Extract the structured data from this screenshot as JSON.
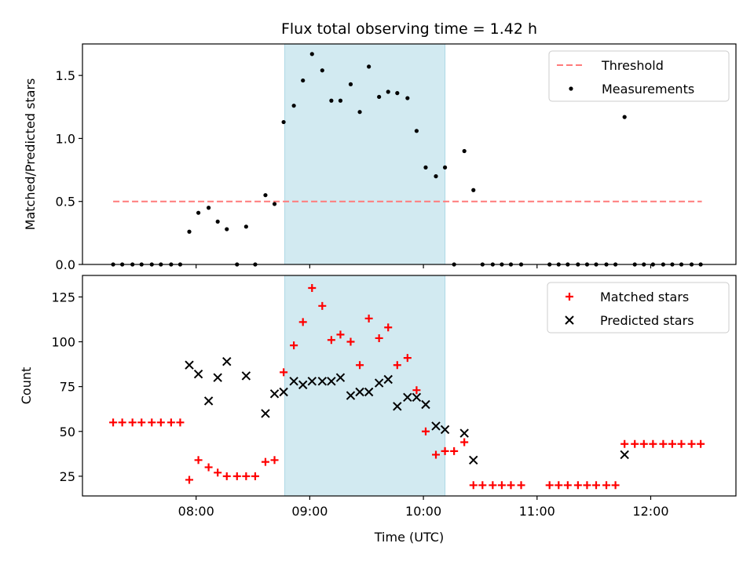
{
  "title": "Flux total observing time = 1.42 h",
  "colors": {
    "threshold": "#ff7a7a",
    "shade": "#add8e6",
    "matched": "#ff0000",
    "predicted": "#000000",
    "measurement": "#000000"
  },
  "chart_data": [
    {
      "type": "scatter",
      "ylabel": "Matched/Predicted stars",
      "xlabel": "",
      "xlim": [
        7.0,
        12.75
      ],
      "ylim": [
        0,
        1.75
      ],
      "yticks": [
        0.0,
        0.5,
        1.0,
        1.5
      ],
      "ytick_labels": [
        "0.0",
        "0.5",
        "1.0",
        "1.5"
      ],
      "xticks": [
        8,
        9,
        10,
        11,
        12
      ],
      "shaded_x": [
        8.78,
        10.19
      ],
      "legend_position": "upper right",
      "legend": [
        "Threshold",
        "Measurements"
      ],
      "threshold": {
        "name": "Threshold",
        "y": 0.5,
        "x_start": 7.27,
        "x_end": 12.45
      },
      "series": [
        {
          "name": "Measurements",
          "points": [
            [
              7.27,
              0
            ],
            [
              7.35,
              0
            ],
            [
              7.44,
              0
            ],
            [
              7.52,
              0
            ],
            [
              7.61,
              0
            ],
            [
              7.69,
              0
            ],
            [
              7.78,
              0
            ],
            [
              7.86,
              0
            ],
            [
              7.94,
              0.26
            ],
            [
              8.02,
              0.41
            ],
            [
              8.11,
              0.45
            ],
            [
              8.19,
              0.34
            ],
            [
              8.27,
              0.28
            ],
            [
              8.36,
              0
            ],
            [
              8.44,
              0.3
            ],
            [
              8.52,
              0
            ],
            [
              8.61,
              0.55
            ],
            [
              8.69,
              0.48
            ],
            [
              8.77,
              1.13
            ],
            [
              8.86,
              1.26
            ],
            [
              8.94,
              1.46
            ],
            [
              9.02,
              1.67
            ],
            [
              9.11,
              1.54
            ],
            [
              9.19,
              1.3
            ],
            [
              9.27,
              1.3
            ],
            [
              9.36,
              1.43
            ],
            [
              9.44,
              1.21
            ],
            [
              9.52,
              1.57
            ],
            [
              9.61,
              1.33
            ],
            [
              9.69,
              1.37
            ],
            [
              9.77,
              1.36
            ],
            [
              9.86,
              1.32
            ],
            [
              9.94,
              1.06
            ],
            [
              10.02,
              0.77
            ],
            [
              10.11,
              0.7
            ],
            [
              10.19,
              0.77
            ],
            [
              10.27,
              0
            ],
            [
              10.36,
              0.9
            ],
            [
              10.44,
              0.59
            ],
            [
              10.52,
              0
            ],
            [
              10.61,
              0
            ],
            [
              10.69,
              0
            ],
            [
              10.77,
              0
            ],
            [
              10.86,
              0
            ],
            [
              11.11,
              0
            ],
            [
              11.19,
              0
            ],
            [
              11.27,
              0
            ],
            [
              11.36,
              0
            ],
            [
              11.44,
              0
            ],
            [
              11.52,
              0
            ],
            [
              11.61,
              0
            ],
            [
              11.69,
              0
            ],
            [
              11.77,
              1.17
            ],
            [
              11.86,
              0
            ],
            [
              11.94,
              0
            ],
            [
              12.02,
              0
            ],
            [
              12.11,
              0
            ],
            [
              12.19,
              0
            ],
            [
              12.27,
              0
            ],
            [
              12.36,
              0
            ],
            [
              12.44,
              0
            ]
          ]
        }
      ]
    },
    {
      "type": "scatter",
      "ylabel": "Count",
      "xlabel": "Time (UTC)",
      "xlim": [
        7.0,
        12.75
      ],
      "ylim": [
        14,
        137
      ],
      "yticks": [
        25,
        50,
        75,
        100,
        125
      ],
      "ytick_labels": [
        "25",
        "50",
        "75",
        "100",
        "125"
      ],
      "xticks": [
        8,
        9,
        10,
        11,
        12
      ],
      "xtick_labels": [
        "08:00",
        "09:00",
        "10:00",
        "11:00",
        "12:00"
      ],
      "shaded_x": [
        8.78,
        10.19
      ],
      "legend_position": "upper right",
      "legend": [
        "Matched stars",
        "Predicted stars"
      ],
      "series": [
        {
          "name": "Matched stars",
          "marker": "+",
          "points": [
            [
              7.27,
              55
            ],
            [
              7.35,
              55
            ],
            [
              7.44,
              55
            ],
            [
              7.52,
              55
            ],
            [
              7.61,
              55
            ],
            [
              7.69,
              55
            ],
            [
              7.78,
              55
            ],
            [
              7.86,
              55
            ],
            [
              7.94,
              23
            ],
            [
              8.02,
              34
            ],
            [
              8.11,
              30
            ],
            [
              8.19,
              27
            ],
            [
              8.27,
              25
            ],
            [
              8.36,
              25
            ],
            [
              8.44,
              25
            ],
            [
              8.52,
              25
            ],
            [
              8.61,
              33
            ],
            [
              8.69,
              34
            ],
            [
              8.77,
              83
            ],
            [
              8.86,
              98
            ],
            [
              8.94,
              111
            ],
            [
              9.02,
              130
            ],
            [
              9.11,
              120
            ],
            [
              9.19,
              101
            ],
            [
              9.27,
              104
            ],
            [
              9.36,
              100
            ],
            [
              9.44,
              87
            ],
            [
              9.52,
              113
            ],
            [
              9.61,
              102
            ],
            [
              9.69,
              108
            ],
            [
              9.77,
              87
            ],
            [
              9.86,
              91
            ],
            [
              9.94,
              73
            ],
            [
              10.02,
              50
            ],
            [
              10.11,
              37
            ],
            [
              10.19,
              39
            ],
            [
              10.27,
              39
            ],
            [
              10.36,
              44
            ],
            [
              10.44,
              20
            ],
            [
              10.52,
              20
            ],
            [
              10.61,
              20
            ],
            [
              10.69,
              20
            ],
            [
              10.77,
              20
            ],
            [
              10.86,
              20
            ],
            [
              11.11,
              20
            ],
            [
              11.19,
              20
            ],
            [
              11.27,
              20
            ],
            [
              11.36,
              20
            ],
            [
              11.44,
              20
            ],
            [
              11.52,
              20
            ],
            [
              11.61,
              20
            ],
            [
              11.69,
              20
            ],
            [
              11.77,
              43
            ],
            [
              11.86,
              43
            ],
            [
              11.94,
              43
            ],
            [
              12.02,
              43
            ],
            [
              12.11,
              43
            ],
            [
              12.19,
              43
            ],
            [
              12.27,
              43
            ],
            [
              12.36,
              43
            ],
            [
              12.44,
              43
            ]
          ]
        },
        {
          "name": "Predicted stars",
          "marker": "x",
          "points": [
            [
              7.94,
              87
            ],
            [
              8.02,
              82
            ],
            [
              8.11,
              67
            ],
            [
              8.19,
              80
            ],
            [
              8.27,
              89
            ],
            [
              8.44,
              81
            ],
            [
              8.61,
              60
            ],
            [
              8.69,
              71
            ],
            [
              8.77,
              72
            ],
            [
              8.86,
              78
            ],
            [
              8.94,
              76
            ],
            [
              9.02,
              78
            ],
            [
              9.11,
              78
            ],
            [
              9.19,
              78
            ],
            [
              9.27,
              80
            ],
            [
              9.36,
              70
            ],
            [
              9.44,
              72
            ],
            [
              9.52,
              72
            ],
            [
              9.61,
              77
            ],
            [
              9.69,
              79
            ],
            [
              9.77,
              64
            ],
            [
              9.86,
              69
            ],
            [
              9.94,
              69
            ],
            [
              10.02,
              65
            ],
            [
              10.11,
              53
            ],
            [
              10.19,
              51
            ],
            [
              10.36,
              49
            ],
            [
              10.44,
              34
            ],
            [
              11.77,
              37
            ]
          ]
        }
      ]
    }
  ]
}
